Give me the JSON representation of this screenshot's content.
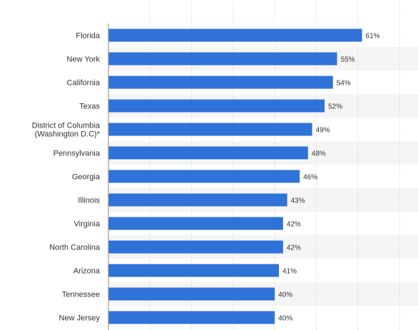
{
  "chart_data": {
    "type": "bar",
    "orientation": "horizontal",
    "categories": [
      "Florida",
      "New York",
      "California",
      "Texas",
      "District of Columbia (Washington D.C)*",
      "Pennsylvania",
      "Georgia",
      "Illinois",
      "Virginia",
      "North Carolina",
      "Arizona",
      "Tennessee",
      "New Jersey"
    ],
    "category_lines": [
      [
        "Florida"
      ],
      [
        "New York"
      ],
      [
        "California"
      ],
      [
        "Texas"
      ],
      [
        "District of Columbia",
        "(Washington D.C)*"
      ],
      [
        "Pennsylvania"
      ],
      [
        "Georgia"
      ],
      [
        "Illinois"
      ],
      [
        "Virginia"
      ],
      [
        "North Carolina"
      ],
      [
        "Arizona"
      ],
      [
        "Tennessee"
      ],
      [
        "New Jersey"
      ]
    ],
    "values": [
      61,
      55,
      54,
      52,
      49,
      48,
      46,
      43,
      42,
      42,
      41,
      40,
      40
    ],
    "value_labels": [
      "61%",
      "55%",
      "54%",
      "52%",
      "49%",
      "48%",
      "46%",
      "43%",
      "42%",
      "42%",
      "41%",
      "40%",
      "40%"
    ],
    "xlim": [
      0,
      70
    ],
    "grid": true,
    "title": "",
    "xlabel": "",
    "ylabel": ""
  },
  "colors": {
    "bar": "#2f73d8",
    "band": "#f5f5f5",
    "grid": "#cccccc",
    "axis": "#888888",
    "text": "#333333"
  }
}
